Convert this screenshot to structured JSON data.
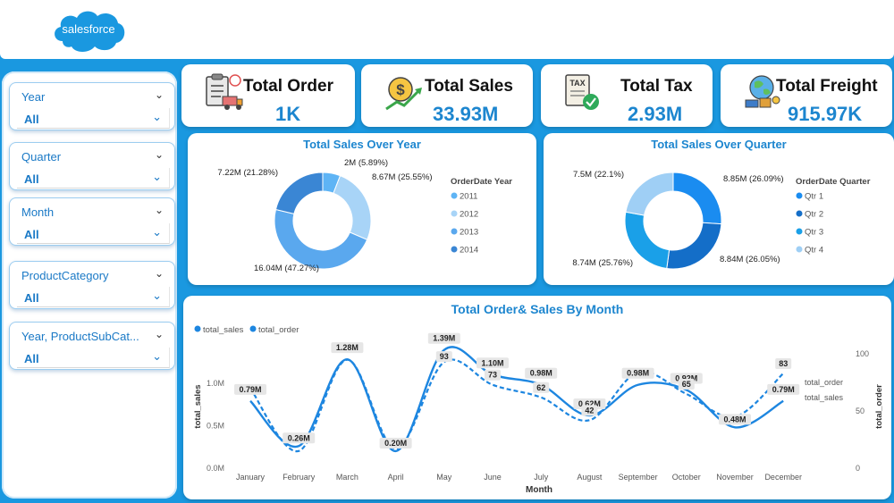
{
  "brand": {
    "logo_text": "salesforce",
    "color": "#1a98e0"
  },
  "slicers": [
    {
      "title": "Year",
      "value": "All"
    },
    {
      "title": "Quarter",
      "value": "All"
    },
    {
      "title": "Month",
      "value": "All"
    },
    {
      "title": "ProductCategory",
      "value": "All"
    },
    {
      "title": "Year, ProductSubCat...",
      "value": "All"
    }
  ],
  "kpis": {
    "order": {
      "label": "Total Order",
      "value": "1K",
      "icon": "clipboard-truck-icon"
    },
    "sales": {
      "label": "Total Sales",
      "value": "33.93M",
      "icon": "money-growth-icon"
    },
    "tax": {
      "label": "Total Tax",
      "value": "2.93M",
      "icon": "tax-document-icon"
    },
    "freight": {
      "label": "Total Freight",
      "value": "915.97K",
      "icon": "globe-freight-icon"
    }
  },
  "chart_data": [
    {
      "type": "pie",
      "title": "Total Sales Over Year",
      "legend_title": "OrderDate Year",
      "legend_placement": "right",
      "categories": [
        "2011",
        "2012",
        "2013",
        "2014"
      ],
      "values": [
        2.0,
        8.67,
        16.04,
        7.22
      ],
      "labels": [
        "2M (5.89%)",
        "8.67M (25.55%)",
        "16.04M (47.27%)",
        "7.22M (21.28%)"
      ],
      "colors": [
        "#5eb4f5",
        "#a8d4f7",
        "#5aa8ee",
        "#3a86d4"
      ]
    },
    {
      "type": "pie",
      "title": "Total Sales Over Quarter",
      "legend_title": "OrderDate Quarter",
      "legend_placement": "right",
      "categories": [
        "Qtr 1",
        "Qtr 2",
        "Qtr 3",
        "Qtr 4"
      ],
      "values": [
        8.85,
        8.84,
        8.74,
        7.5
      ],
      "labels": [
        "8.85M (26.09%)",
        "8.84M (26.05%)",
        "8.74M (25.76%)",
        "7.5M (22.1%)"
      ],
      "colors": [
        "#1a8cf0",
        "#146ec8",
        "#1aa0e8",
        "#9fcff5"
      ]
    },
    {
      "type": "line",
      "title": "Total Order& Sales By Month",
      "xlabel": "Month",
      "ylabel": "total_sales",
      "y2label": "total_order",
      "categories": [
        "January",
        "February",
        "March",
        "April",
        "May",
        "June",
        "July",
        "August",
        "September",
        "October",
        "November",
        "December"
      ],
      "ylim": [
        0,
        1.45
      ],
      "y2lim": [
        0,
        108
      ],
      "yticks": [
        "0.0M",
        "0.5M",
        "1.0M"
      ],
      "y2ticks": [
        "0",
        "50",
        "100"
      ],
      "legend_placement": "top-left",
      "series": [
        {
          "name": "total_sales",
          "values": [
            0.79,
            0.26,
            1.28,
            0.2,
            1.39,
            1.1,
            0.98,
            0.62,
            0.98,
            0.92,
            0.48,
            0.79
          ],
          "labels": [
            "0.79M",
            "0.26M",
            "1.28M",
            "0.20M",
            "1.39M",
            "1.10M",
            "0.98M",
            "0.62M",
            "0.98M",
            "0.92M",
            "0.48M",
            "0.79M"
          ],
          "style": "solid",
          "color": "#1d86e0"
        },
        {
          "name": "total_order",
          "values": [
            70,
            15,
            95,
            17,
            93,
            73,
            62,
            42,
            84,
            65,
            45,
            83
          ],
          "labels": [
            "",
            "",
            "",
            "",
            "93",
            "73",
            "62",
            "42",
            "",
            "65",
            "",
            "83"
          ],
          "style": "dashed",
          "color": "#1d86e0"
        }
      ]
    }
  ]
}
